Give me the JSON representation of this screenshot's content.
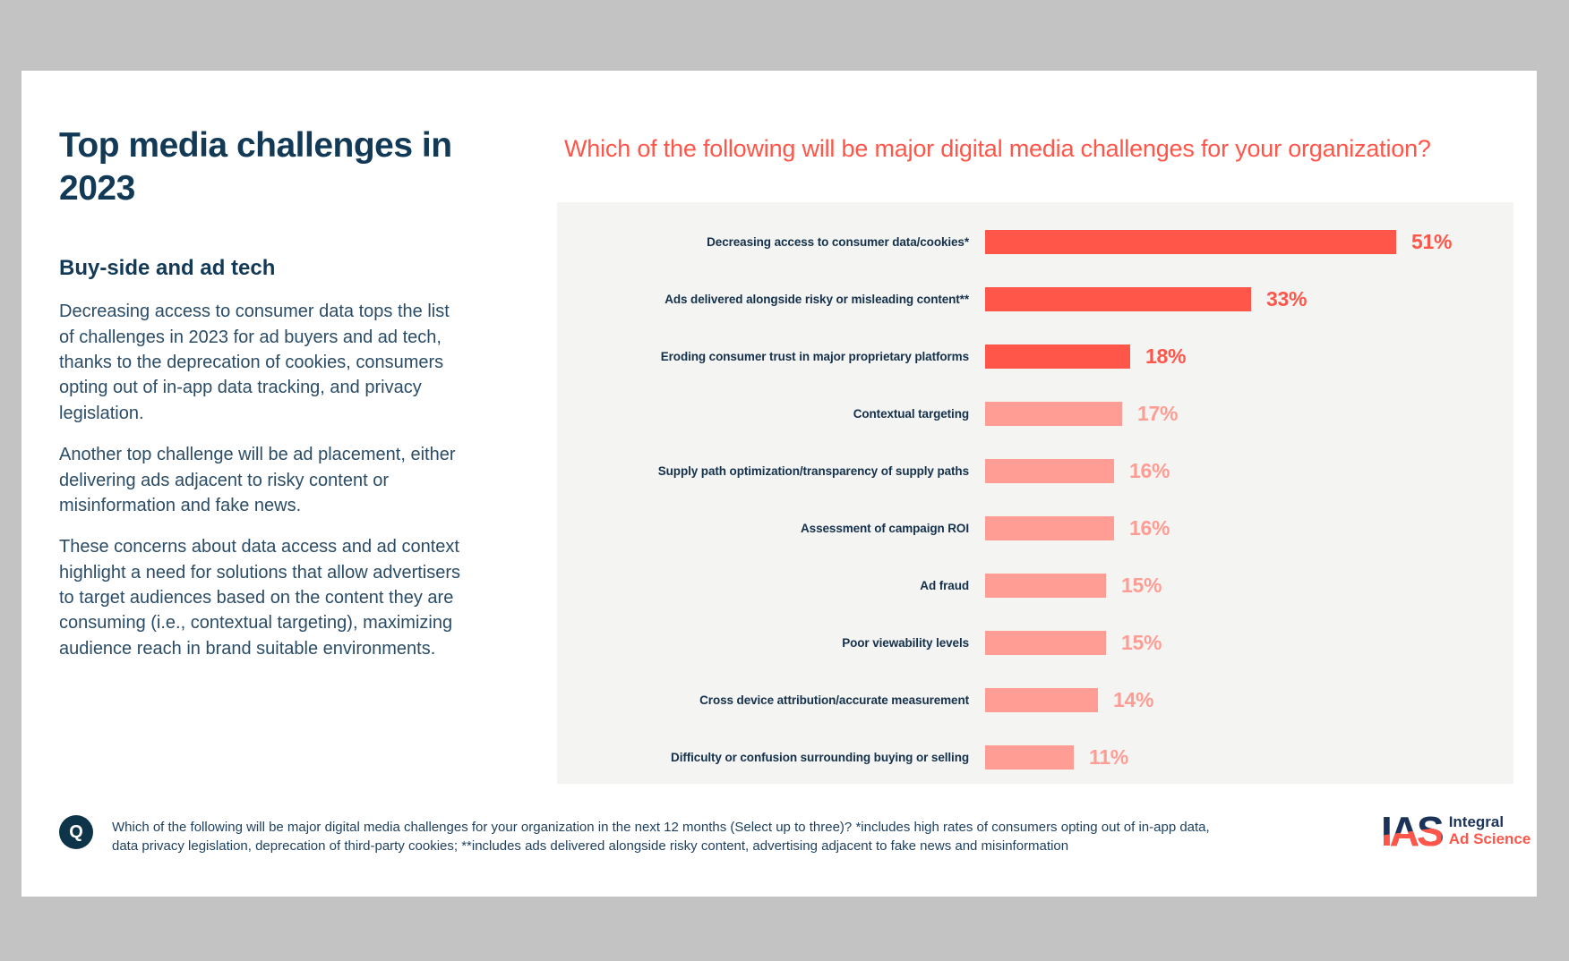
{
  "page": {
    "background_color": "#c3c3c3",
    "card_color": "#ffffff"
  },
  "left_panel": {
    "title": "Top media challenges in 2023",
    "subtitle": "Buy-side and ad tech",
    "paragraphs": [
      "Decreasing access to consumer data tops the list of challenges in 2023 for ad buyers and ad tech, thanks to the deprecation of cookies, consumers opting out of in-app data tracking, and privacy legislation.",
      "Another top challenge will be ad placement, either delivering ads adjacent to risky content or misinformation and fake news.",
      "These concerns about data access and ad context highlight a need for solutions that allow advertisers to target audiences based on the content they are consuming (i.e., contextual targeting), maximizing audience reach in brand suitable environments."
    ]
  },
  "chart_data": {
    "type": "bar",
    "orientation": "horizontal",
    "title": "Which of the following will be major digital media challenges for your organization?",
    "categories": [
      "Decreasing access to consumer data/cookies*",
      "Ads delivered alongside risky or misleading content**",
      "Eroding consumer trust in major proprietary platforms",
      "Contextual targeting",
      "Supply path optimization/transparency of supply paths",
      "Assessment of campaign ROI",
      "Ad fraud",
      "Poor viewability levels",
      "Cross device attribution/accurate measurement",
      "Difficulty or confusion surrounding buying or selling"
    ],
    "values": [
      51,
      33,
      18,
      17,
      16,
      16,
      15,
      15,
      14,
      11
    ],
    "value_suffix": "%",
    "emphasized_rows": [
      0,
      1,
      2
    ],
    "colors": {
      "emphasis": "#ff5649",
      "default": "#ff9d94",
      "panel_background": "#f4f4f3",
      "label_text": "#14304a"
    },
    "xlim": [
      0,
      57
    ],
    "grid": false,
    "legend": "none"
  },
  "footer": {
    "q_label": "Q",
    "note": "Which of the following will be major digital media challenges for your organization in the next 12 months (Select up to three)? *includes high rates of consumers opting out of in-app data, data privacy legislation, deprecation of third-party cookies; **includes ads delivered alongside risky content, advertising adjacent to fake news and misinformation"
  },
  "logo": {
    "acronym": "IAS",
    "line1": "Integral",
    "line2": "Ad Science"
  }
}
